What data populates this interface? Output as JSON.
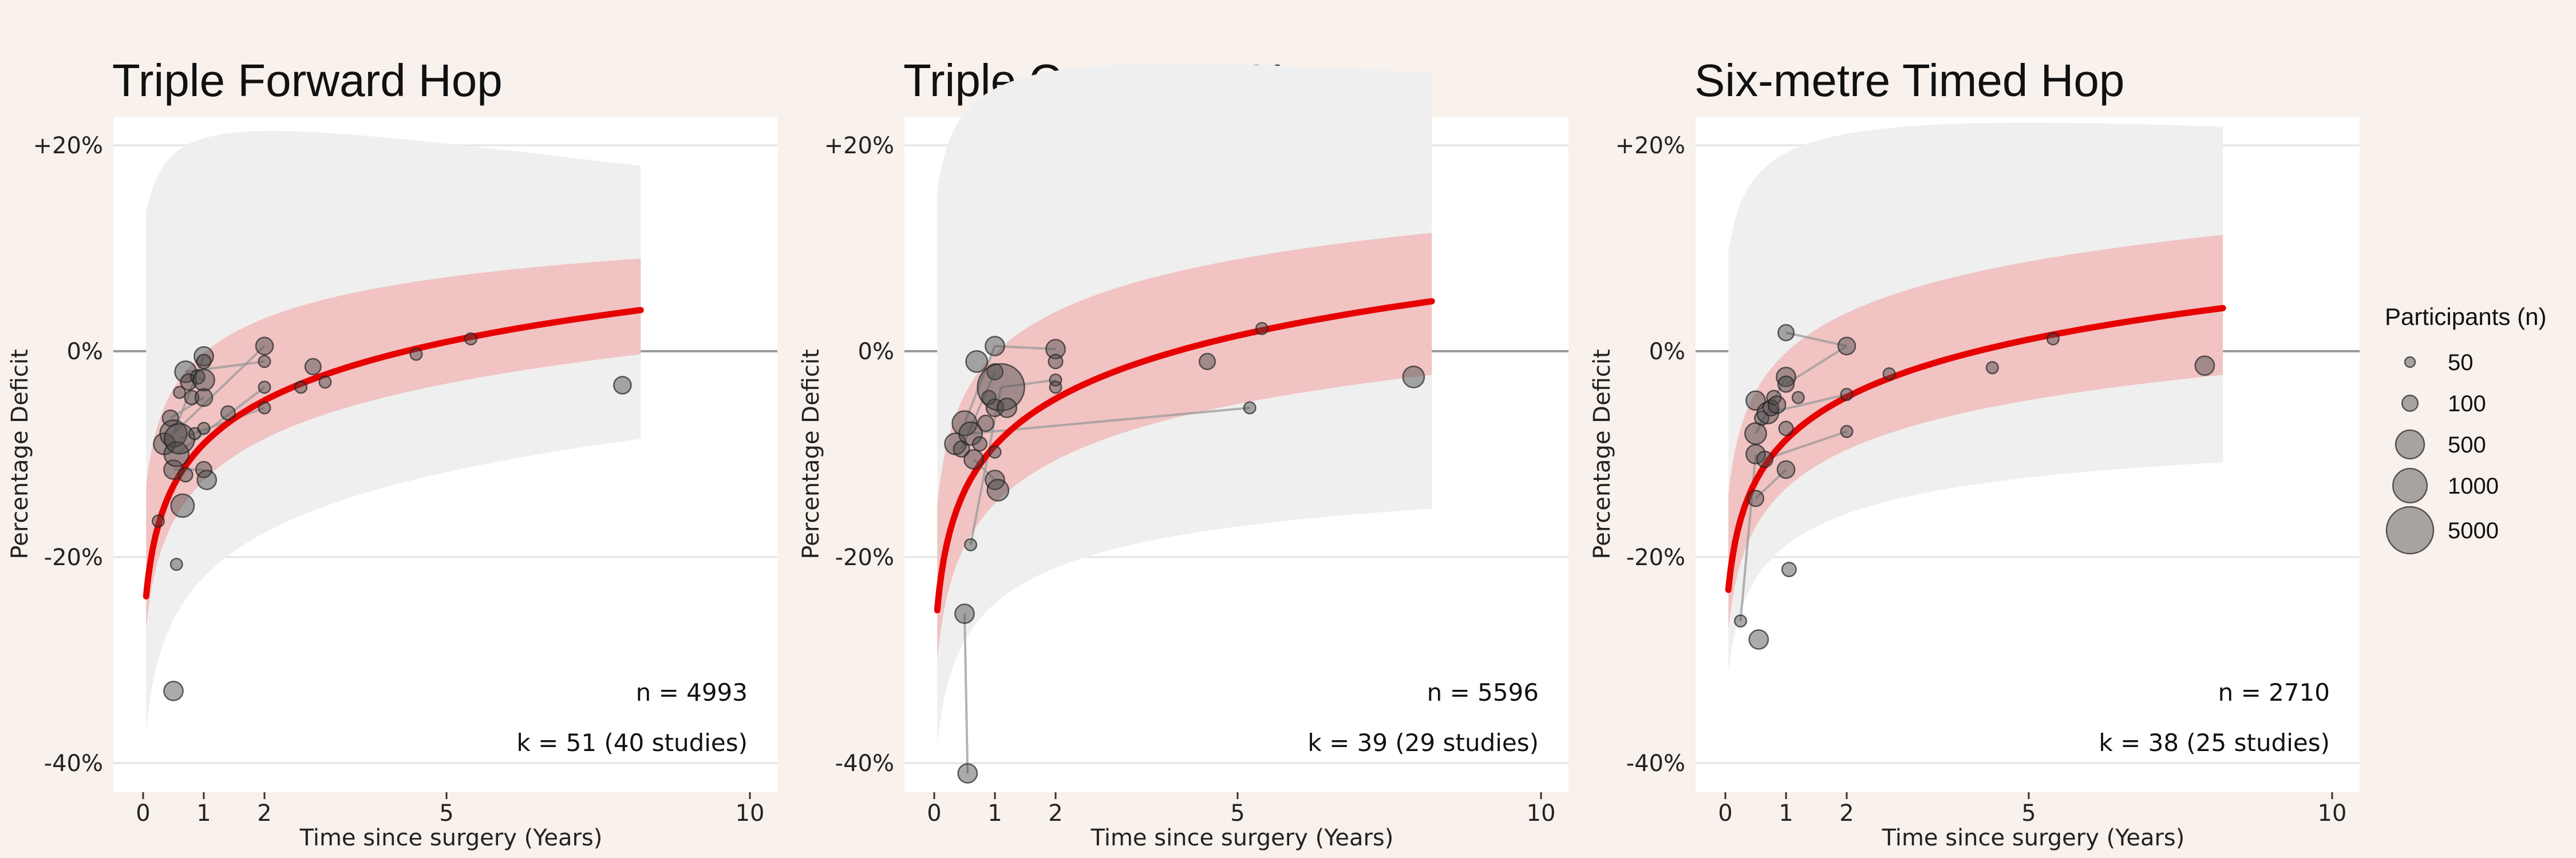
{
  "legend": {
    "title": "Participants (n)",
    "placement": "right",
    "entries": [
      {
        "label": "50",
        "n": 50
      },
      {
        "label": "100",
        "n": 100
      },
      {
        "label": "500",
        "n": 500
      },
      {
        "label": "1000",
        "n": 1000
      },
      {
        "label": "5000",
        "n": 5000
      }
    ]
  },
  "colors": {
    "background": "#f8f1ec",
    "panel": "#ffffff",
    "prediction_band": "#efefef",
    "confidence_band": "#f0c0c0",
    "fit_line": "#e60000",
    "points": "#444444"
  },
  "chart_data": [
    {
      "type": "scatter",
      "title": "Triple Forward Hop",
      "xlabel": "Time since surgery (Years)",
      "ylabel": "Percentage Deficit",
      "xlim": [
        -0.5,
        10.5
      ],
      "ylim": [
        -42,
        24
      ],
      "x_ticks": [
        0,
        1,
        2,
        5,
        10
      ],
      "y_ticks": [
        20,
        0,
        -20,
        -40
      ],
      "y_tick_labels": [
        "+20%",
        "0%",
        "-20%",
        "-40%"
      ],
      "annotations": {
        "n": "n = 4993",
        "k": "k = 51 (40 studies)"
      },
      "fit": {
        "x_end": 8.2,
        "a": -9.3,
        "b": 6.3,
        "ci_low": [
          -27,
          -0.3
        ],
        "ci_high": [
          -13,
          9
        ],
        "pi_low": [
          -37,
          -8.5
        ],
        "pi_high": [
          14,
          18
        ]
      },
      "points": [
        {
          "x": 0.25,
          "y": -16.5,
          "n": 60
        },
        {
          "x": 0.35,
          "y": -9,
          "n": 200
        },
        {
          "x": 0.45,
          "y": -6.5,
          "n": 100
        },
        {
          "x": 0.5,
          "y": -8,
          "n": 400
        },
        {
          "x": 0.5,
          "y": -11.5,
          "n": 150
        },
        {
          "x": 0.55,
          "y": -10,
          "n": 300
        },
        {
          "x": 0.5,
          "y": -33,
          "n": 150
        },
        {
          "x": 0.55,
          "y": -20.7,
          "n": 60
        },
        {
          "x": 0.6,
          "y": -8.5,
          "n": 600
        },
        {
          "x": 0.6,
          "y": -4,
          "n": 60
        },
        {
          "x": 0.65,
          "y": -15,
          "n": 250
        },
        {
          "x": 0.7,
          "y": -2,
          "n": 200
        },
        {
          "x": 0.7,
          "y": -12,
          "n": 80
        },
        {
          "x": 0.75,
          "y": -3,
          "n": 100
        },
        {
          "x": 0.8,
          "y": -4.5,
          "n": 80
        },
        {
          "x": 0.85,
          "y": -8,
          "n": 60
        },
        {
          "x": 0.9,
          "y": -2.5,
          "n": 80
        },
        {
          "x": 1.0,
          "y": -0.5,
          "n": 150
        },
        {
          "x": 1.0,
          "y": -1,
          "n": 80
        },
        {
          "x": 1.0,
          "y": -2.8,
          "n": 200
        },
        {
          "x": 1.0,
          "y": -4.5,
          "n": 120
        },
        {
          "x": 1.0,
          "y": -7.5,
          "n": 60
        },
        {
          "x": 1.0,
          "y": -11.5,
          "n": 100
        },
        {
          "x": 1.05,
          "y": -12.5,
          "n": 150
        },
        {
          "x": 1.4,
          "y": -6,
          "n": 80
        },
        {
          "x": 2.0,
          "y": 0.5,
          "n": 120
        },
        {
          "x": 2.0,
          "y": -1,
          "n": 60
        },
        {
          "x": 2.0,
          "y": -3.5,
          "n": 60
        },
        {
          "x": 2.0,
          "y": -5.5,
          "n": 60
        },
        {
          "x": 2.6,
          "y": -3.5,
          "n": 60
        },
        {
          "x": 2.8,
          "y": -1.5,
          "n": 100
        },
        {
          "x": 3.0,
          "y": -3,
          "n": 60
        },
        {
          "x": 4.5,
          "y": -0.3,
          "n": 60
        },
        {
          "x": 5.4,
          "y": 1.2,
          "n": 60
        },
        {
          "x": 7.9,
          "y": -3.3,
          "n": 120
        }
      ],
      "segments": [
        [
          0.5,
          -8,
          1.0,
          -0.5
        ],
        [
          0.5,
          -8,
          2.0,
          0.5
        ],
        [
          0.55,
          -10,
          2.0,
          -3.5
        ],
        [
          0.6,
          -8.5,
          2.0,
          -5.5
        ],
        [
          0.5,
          -11.5,
          1.0,
          -11.5
        ],
        [
          0.7,
          -2,
          1.0,
          -2.8
        ],
        [
          0.45,
          -6.5,
          1.0,
          -4.5
        ],
        [
          2.0,
          -1,
          0.7,
          -2
        ]
      ]
    },
    {
      "type": "scatter",
      "title": "Triple Crossover Hop",
      "xlabel": "Time since surgery (Years)",
      "ylabel": "Percentage Deficit",
      "xlim": [
        -0.5,
        10.5
      ],
      "ylim": [
        -42,
        24
      ],
      "x_ticks": [
        0,
        1,
        2,
        5,
        10
      ],
      "y_ticks": [
        20,
        0,
        -20,
        -40
      ],
      "y_tick_labels": [
        "+20%",
        "0%",
        "-20%",
        "-40%"
      ],
      "annotations": {
        "n": "n = 5596",
        "k": "k = 39 (29 studies)"
      },
      "fit": {
        "x_end": 8.2,
        "a": -9.5,
        "b": 6.8,
        "ci_low": [
          -30,
          -2.3
        ],
        "ci_high": [
          -15,
          11.5
        ],
        "pi_low": [
          -38,
          -15.3
        ],
        "pi_high": [
          16,
          27
        ]
      },
      "points": [
        {
          "x": 0.35,
          "y": -9,
          "n": 200
        },
        {
          "x": 0.45,
          "y": -9.5,
          "n": 100
        },
        {
          "x": 0.5,
          "y": -7,
          "n": 300
        },
        {
          "x": 0.5,
          "y": -25.5,
          "n": 150
        },
        {
          "x": 0.55,
          "y": -41,
          "n": 150
        },
        {
          "x": 0.6,
          "y": -8,
          "n": 250
        },
        {
          "x": 0.6,
          "y": -18.8,
          "n": 60
        },
        {
          "x": 0.65,
          "y": -10.5,
          "n": 150
        },
        {
          "x": 0.7,
          "y": -1,
          "n": 200
        },
        {
          "x": 0.75,
          "y": -9,
          "n": 80
        },
        {
          "x": 0.85,
          "y": -7,
          "n": 100
        },
        {
          "x": 0.9,
          "y": -4.5,
          "n": 80
        },
        {
          "x": 1.0,
          "y": 0.5,
          "n": 150
        },
        {
          "x": 1.0,
          "y": -2,
          "n": 100
        },
        {
          "x": 1.0,
          "y": -5.5,
          "n": 120
        },
        {
          "x": 1.0,
          "y": -9.8,
          "n": 60
        },
        {
          "x": 1.0,
          "y": -12.5,
          "n": 150
        },
        {
          "x": 1.05,
          "y": -13.5,
          "n": 200
        },
        {
          "x": 1.1,
          "y": -3.5,
          "n": 5000
        },
        {
          "x": 1.2,
          "y": -5.5,
          "n": 150
        },
        {
          "x": 2.0,
          "y": 0.2,
          "n": 150
        },
        {
          "x": 2.0,
          "y": -1,
          "n": 80
        },
        {
          "x": 2.0,
          "y": -2.8,
          "n": 60
        },
        {
          "x": 2.0,
          "y": -3.5,
          "n": 60
        },
        {
          "x": 4.5,
          "y": -1,
          "n": 100
        },
        {
          "x": 5.2,
          "y": -5.5,
          "n": 60
        },
        {
          "x": 5.4,
          "y": 2.2,
          "n": 60
        },
        {
          "x": 7.9,
          "y": -2.5,
          "n": 200
        }
      ],
      "segments": [
        [
          0.6,
          -8,
          5.2,
          -5.5
        ],
        [
          0.5,
          -7,
          1.0,
          0.5
        ],
        [
          0.55,
          -41,
          0.5,
          -25.5
        ],
        [
          0.6,
          -18.8,
          1.1,
          -3.5
        ],
        [
          0.65,
          -10.5,
          1.0,
          -12.5
        ],
        [
          1.0,
          0.5,
          2.0,
          0.2
        ],
        [
          1.1,
          -3.5,
          2.0,
          -2.8
        ],
        [
          0.45,
          -9.5,
          1.0,
          -2
        ]
      ]
    },
    {
      "type": "scatter",
      "title": "Six-metre Timed Hop",
      "xlabel": "Time since surgery (Years)",
      "ylabel": "Percentage Deficit",
      "xlim": [
        -0.5,
        10.5
      ],
      "ylim": [
        -42,
        24
      ],
      "x_ticks": [
        0,
        1,
        2,
        5,
        10
      ],
      "y_ticks": [
        20,
        0,
        -20,
        -40
      ],
      "y_tick_labels": [
        "+20%",
        "0%",
        "-20%",
        "-40%"
      ],
      "annotations": {
        "n": "n = 2710",
        "k": "k = 38 (25 studies)"
      },
      "fit": {
        "x_end": 8.2,
        "a": -8.9,
        "b": 6.2,
        "ci_low": [
          -27,
          -2.3
        ],
        "ci_high": [
          -14,
          11.3
        ],
        "pi_low": [
          -31,
          -10.8
        ],
        "pi_high": [
          10,
          21.8
        ]
      },
      "points": [
        {
          "x": 0.25,
          "y": -26.2,
          "n": 60
        },
        {
          "x": 0.5,
          "y": -4.8,
          "n": 150
        },
        {
          "x": 0.5,
          "y": -8,
          "n": 200
        },
        {
          "x": 0.5,
          "y": -10,
          "n": 150
        },
        {
          "x": 0.5,
          "y": -14.3,
          "n": 100
        },
        {
          "x": 0.55,
          "y": -28,
          "n": 150
        },
        {
          "x": 0.6,
          "y": -6.5,
          "n": 80
        },
        {
          "x": 0.65,
          "y": -10.5,
          "n": 100
        },
        {
          "x": 0.7,
          "y": -6,
          "n": 200
        },
        {
          "x": 0.75,
          "y": -5.5,
          "n": 100
        },
        {
          "x": 0.8,
          "y": -4.5,
          "n": 80
        },
        {
          "x": 0.85,
          "y": -5.2,
          "n": 120
        },
        {
          "x": 1.0,
          "y": 1.8,
          "n": 100
        },
        {
          "x": 1.0,
          "y": -2.5,
          "n": 150
        },
        {
          "x": 1.0,
          "y": -3.2,
          "n": 100
        },
        {
          "x": 1.0,
          "y": -7.5,
          "n": 80
        },
        {
          "x": 1.0,
          "y": -11.5,
          "n": 120
        },
        {
          "x": 1.05,
          "y": -21.2,
          "n": 80
        },
        {
          "x": 1.2,
          "y": -4.5,
          "n": 60
        },
        {
          "x": 2.0,
          "y": 0.5,
          "n": 120
        },
        {
          "x": 2.0,
          "y": -4.2,
          "n": 60
        },
        {
          "x": 2.0,
          "y": -7.8,
          "n": 60
        },
        {
          "x": 2.7,
          "y": -2.2,
          "n": 60
        },
        {
          "x": 4.4,
          "y": -1.6,
          "n": 60
        },
        {
          "x": 5.4,
          "y": 1.2,
          "n": 60
        },
        {
          "x": 7.9,
          "y": -1.4,
          "n": 150
        }
      ],
      "segments": [
        [
          0.25,
          -26.2,
          0.5,
          -10
        ],
        [
          0.5,
          -8,
          1.0,
          -2.5
        ],
        [
          1.0,
          1.8,
          2.0,
          0.5
        ],
        [
          0.65,
          -10.5,
          2.0,
          -7.8
        ],
        [
          0.5,
          -14.3,
          1.0,
          -11.5
        ],
        [
          1.0,
          -3.2,
          2.0,
          0.5
        ],
        [
          0.7,
          -6,
          2.0,
          -4.2
        ]
      ]
    }
  ]
}
